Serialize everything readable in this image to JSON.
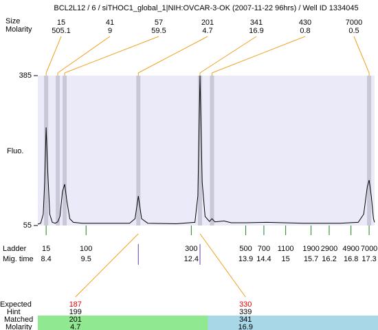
{
  "title": "BCL2L12 / 6 / siTHOC1_global_1|NIH:OVCAR-3-OK (2007-11-22 96hrs) / Well ID 1334045",
  "peaks": {
    "size_label": "Size",
    "molarity_label": "Molarity",
    "items": [
      {
        "size": 15,
        "molarity": 505.1,
        "time": 8.4
      },
      {
        "size": 41,
        "molarity": 9,
        "time": 8.72
      },
      {
        "size": 57,
        "molarity": 59.5,
        "time": 8.91
      },
      {
        "size": 201,
        "molarity": 4.7,
        "time": 10.94
      },
      {
        "size": 341,
        "molarity": 16.9,
        "time": 12.64
      },
      {
        "size": 430,
        "molarity": 0.8,
        "time": 12.97
      },
      {
        "size": 7000,
        "molarity": 0.5,
        "time": 17.3
      }
    ]
  },
  "axis": {
    "ylabel": "Fluo.",
    "ylim": [
      55,
      385
    ],
    "yticks": [
      385,
      55
    ],
    "xlim": [
      8.17,
      17.45
    ]
  },
  "trace": {
    "x": [
      8.17,
      8.25,
      8.32,
      8.36,
      8.4,
      8.44,
      8.5,
      8.57,
      8.65,
      8.72,
      8.78,
      8.85,
      8.91,
      8.97,
      9.05,
      9.15,
      9.4,
      10.0,
      10.7,
      10.85,
      10.94,
      11.03,
      11.2,
      12.0,
      12.5,
      12.58,
      12.64,
      12.7,
      12.78,
      12.9,
      12.97,
      13.05,
      13.3,
      13.5,
      13.9,
      14.5,
      15.5,
      16.5,
      17.0,
      17.15,
      17.25,
      17.3,
      17.36,
      17.42,
      17.45
    ],
    "y": [
      58,
      60,
      80,
      150,
      271,
      180,
      80,
      62,
      60,
      63,
      75,
      130,
      146,
      110,
      70,
      62,
      60,
      60,
      60,
      70,
      120,
      70,
      60,
      59,
      62,
      120,
      385,
      150,
      75,
      64,
      70,
      63,
      65,
      61,
      61,
      62,
      60,
      60,
      62,
      80,
      140,
      155,
      120,
      70,
      62
    ]
  },
  "ladder": {
    "label": "Ladder",
    "time_label": "Mig. time",
    "sizes": [
      15,
      100,
      300,
      500,
      700,
      1100,
      1900,
      2900,
      4900,
      7000
    ],
    "times": [
      8.4,
      9.5,
      12.4,
      13.9,
      14.4,
      15,
      15.7,
      16.2,
      16.8,
      17.3
    ]
  },
  "expected": {
    "label": "Expected",
    "hint_label": "Hint",
    "matched_label": "Matched",
    "molarity_label": "Molarity",
    "items": [
      {
        "expected": 187,
        "hint": 199,
        "matched": 201,
        "molarity": 4.7,
        "color": "#90e890"
      },
      {
        "expected": 330,
        "hint": 339,
        "matched": 341,
        "molarity": 16.9,
        "color": "#a8d8e8"
      }
    ]
  }
}
